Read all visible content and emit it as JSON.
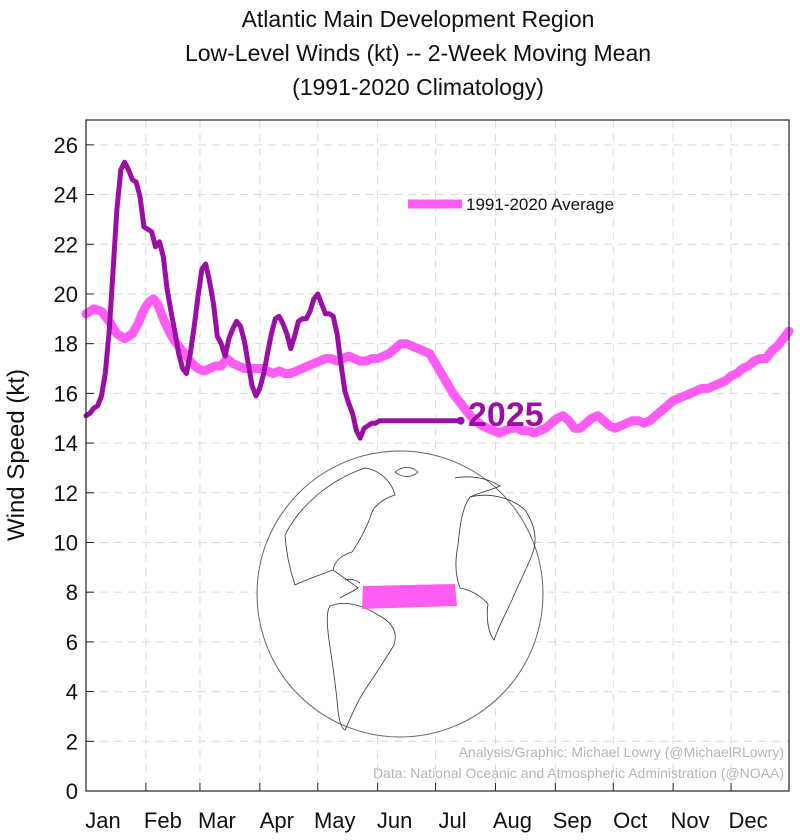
{
  "chart_data": {
    "type": "line",
    "title_lines": [
      "Atlantic Main Development Region",
      "Low-Level Winds (kt) -- 2-Week Moving Mean",
      "(1991-2020 Climatology)"
    ],
    "xlabel": "",
    "ylabel": "Wind Speed (kt)",
    "ylim": [
      0,
      27
    ],
    "yticks": [
      0,
      2,
      4,
      6,
      8,
      10,
      12,
      14,
      16,
      18,
      20,
      22,
      24,
      26
    ],
    "x_unit": "day of year",
    "xlim": [
      1,
      365
    ],
    "month_ticks": [
      {
        "label": "Jan",
        "day": 1
      },
      {
        "label": "Feb",
        "day": 32
      },
      {
        "label": "Mar",
        "day": 60
      },
      {
        "label": "Apr",
        "day": 91
      },
      {
        "label": "May",
        "day": 121
      },
      {
        "label": "Jun",
        "day": 152
      },
      {
        "label": "Jul",
        "day": 182
      },
      {
        "label": "Aug",
        "day": 213
      },
      {
        "label": "Sep",
        "day": 244
      },
      {
        "label": "Oct",
        "day": 274
      },
      {
        "label": "Nov",
        "day": 305
      },
      {
        "label": "Dec",
        "day": 335
      }
    ],
    "grid": true,
    "legend": {
      "placement": "upper-center",
      "label": "1991-2020 Average"
    },
    "year_label": "2025",
    "series": [
      {
        "name": "1991-2020 Average",
        "color": "#ff5cf4",
        "x": [
          1,
          5,
          9,
          13,
          17,
          21,
          25,
          28,
          30,
          32,
          34,
          36,
          38,
          41,
          44,
          47,
          50,
          53,
          56,
          59,
          62,
          65,
          68,
          71,
          74,
          77,
          80,
          83,
          86,
          89,
          92,
          95,
          98,
          101,
          104,
          107,
          110,
          113,
          116,
          119,
          122,
          125,
          128,
          131,
          134,
          137,
          140,
          143,
          146,
          149,
          152,
          155,
          158,
          161,
          164,
          167,
          170,
          173,
          176,
          179,
          182,
          185,
          188,
          191,
          194,
          197,
          200,
          203,
          206,
          209,
          212,
          215,
          218,
          221,
          224,
          227,
          230,
          233,
          236,
          239,
          242,
          245,
          248,
          251,
          254,
          257,
          260,
          263,
          266,
          269,
          272,
          275,
          278,
          281,
          284,
          287,
          290,
          293,
          296,
          299,
          302,
          305,
          308,
          311,
          314,
          317,
          320,
          323,
          326,
          329,
          332,
          335,
          338,
          341,
          344,
          347,
          350,
          353,
          356,
          359,
          362,
          365
        ],
        "values": [
          19.2,
          19.4,
          19.3,
          18.9,
          18.4,
          18.2,
          18.4,
          18.8,
          19.2,
          19.5,
          19.7,
          19.8,
          19.6,
          19.0,
          18.5,
          18.1,
          17.8,
          17.5,
          17.2,
          17.0,
          16.9,
          17.0,
          17.1,
          17.1,
          17.4,
          17.2,
          17.1,
          17.0,
          17.0,
          17.0,
          17.0,
          16.9,
          16.8,
          16.9,
          16.8,
          16.8,
          16.9,
          17.0,
          17.1,
          17.2,
          17.3,
          17.4,
          17.4,
          17.3,
          17.4,
          17.5,
          17.4,
          17.3,
          17.3,
          17.4,
          17.4,
          17.5,
          17.6,
          17.8,
          18.0,
          18.0,
          17.9,
          17.8,
          17.7,
          17.6,
          17.2,
          16.8,
          16.4,
          16.0,
          15.7,
          15.4,
          15.1,
          14.9,
          14.7,
          14.6,
          14.5,
          14.4,
          14.5,
          14.6,
          14.6,
          14.5,
          14.5,
          14.4,
          14.5,
          14.6,
          14.8,
          15.0,
          15.1,
          14.9,
          14.6,
          14.6,
          14.8,
          15.0,
          15.1,
          14.9,
          14.7,
          14.6,
          14.7,
          14.8,
          14.9,
          14.9,
          14.8,
          14.9,
          15.1,
          15.3,
          15.5,
          15.7,
          15.8,
          15.9,
          16.0,
          16.1,
          16.2,
          16.2,
          16.3,
          16.4,
          16.5,
          16.7,
          16.8,
          17.0,
          17.1,
          17.3,
          17.4,
          17.4,
          17.7,
          17.9,
          18.2,
          18.5
        ]
      },
      {
        "name": "2025",
        "color": "#9a0da6",
        "x": [
          1,
          3,
          5,
          7,
          9,
          11,
          13,
          15,
          17,
          19,
          21,
          23,
          25,
          27,
          29,
          31,
          33,
          35,
          37,
          39,
          41,
          43,
          45,
          47,
          49,
          51,
          53,
          55,
          57,
          59,
          61,
          63,
          65,
          67,
          69,
          71,
          73,
          75,
          77,
          79,
          81,
          83,
          85,
          87,
          89,
          91,
          93,
          95,
          97,
          99,
          101,
          103,
          105,
          107,
          109,
          111,
          113,
          115,
          117,
          119,
          121,
          123,
          125,
          127,
          129,
          131,
          133,
          135,
          137,
          139,
          141,
          143,
          145,
          147,
          149,
          151,
          153,
          155,
          157,
          159,
          161,
          163,
          165,
          167,
          169,
          171,
          173,
          175,
          177,
          179,
          181,
          183,
          185,
          187,
          189,
          191,
          193,
          195
        ],
        "values": [
          15.1,
          15.2,
          15.4,
          15.5,
          15.9,
          16.8,
          18.5,
          20.9,
          23.4,
          25.0,
          25.3,
          25.0,
          24.6,
          24.5,
          23.9,
          22.7,
          22.6,
          22.5,
          21.9,
          22.1,
          21.5,
          20.2,
          19.3,
          18.5,
          17.6,
          17.0,
          16.8,
          17.6,
          18.7,
          19.9,
          21.0,
          21.2,
          20.5,
          19.6,
          18.3,
          18.0,
          17.5,
          18.2,
          18.6,
          18.9,
          18.7,
          18.1,
          17.2,
          16.3,
          15.9,
          16.2,
          16.8,
          17.6,
          18.4,
          19.0,
          19.1,
          18.8,
          18.4,
          17.8,
          18.3,
          18.9,
          19.0,
          19.0,
          19.3,
          19.8,
          20.0,
          19.6,
          19.2,
          19.2,
          19.1,
          18.4,
          17.2,
          16.1,
          15.6,
          15.2,
          14.5,
          14.2,
          14.6,
          14.7,
          14.8,
          14.8,
          14.9,
          14.9,
          14.9,
          14.9,
          14.9,
          14.9,
          14.9,
          14.9,
          14.9,
          14.9,
          14.9,
          14.9,
          14.9,
          14.9,
          14.9,
          14.9,
          14.9,
          14.9,
          14.9,
          14.9,
          14.9,
          14.9
        ]
      }
    ]
  },
  "inset_map": {
    "caption": "",
    "highlight_color": "#ff5cf4"
  },
  "credits": {
    "line1": "Analysis/Graphic: Michael Lowry (@MichaelRLowry)",
    "line2": "Data: National Oceanic and Atmospheric Administration (@NOAA)"
  }
}
